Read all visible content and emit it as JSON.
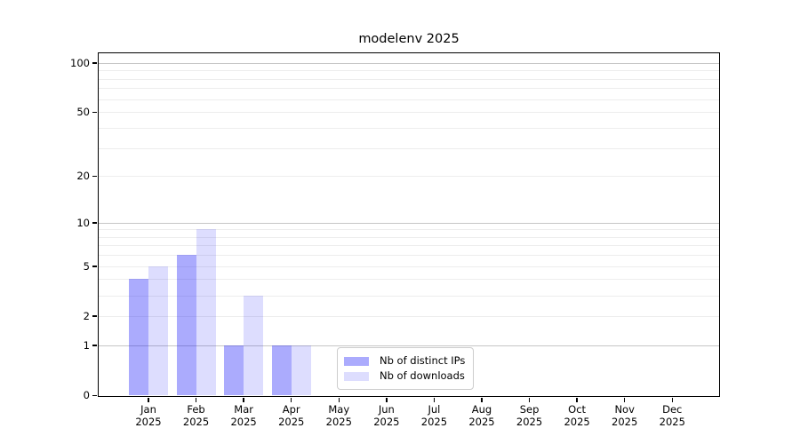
{
  "title": "modelenv 2025",
  "colors": {
    "distinct_ips_fill": "rgba(15,15,250,0.35)",
    "downloads_fill": "rgba(15,15,250,0.14)",
    "grid_major": "#c6c6c6",
    "grid_minor": "#ededed",
    "axis_line": "#000000",
    "legend_border": "#cccccc"
  },
  "legend": {
    "items": [
      {
        "label": "Nb of distinct IPs",
        "color_key": "distinct_ips_fill"
      },
      {
        "label": "Nb of downloads",
        "color_key": "downloads_fill"
      }
    ]
  },
  "chart_data": {
    "type": "bar",
    "title": "modelenv 2025",
    "categories": [
      "Jan 2025",
      "Feb 2025",
      "Mar 2025",
      "Apr 2025",
      "May 2025",
      "Jun 2025",
      "Jul 2025",
      "Aug 2025",
      "Sep 2025",
      "Oct 2025",
      "Nov 2025",
      "Dec 2025"
    ],
    "x_tick_line1": [
      "Jan",
      "Feb",
      "Mar",
      "Apr",
      "May",
      "Jun",
      "Jul",
      "Aug",
      "Sep",
      "Oct",
      "Nov",
      "Dec"
    ],
    "x_tick_line2": "2025",
    "series": [
      {
        "name": "Nb of distinct IPs",
        "values": [
          4,
          6,
          1,
          1,
          0,
          0,
          0,
          0,
          0,
          0,
          0,
          0
        ]
      },
      {
        "name": "Nb of downloads",
        "values": [
          5,
          9,
          3,
          1,
          0,
          0,
          0,
          0,
          0,
          0,
          0,
          0
        ]
      }
    ],
    "xlabel": "",
    "ylabel": "",
    "y_scale": "log1p",
    "ylim": [
      0,
      113
    ],
    "y_major_ticks": [
      0,
      1,
      2,
      5,
      10,
      20,
      50,
      100
    ],
    "y_major_gridlines": [
      1,
      10,
      100
    ],
    "y_minor_gridlines": [
      2,
      3,
      4,
      5,
      6,
      7,
      8,
      9,
      20,
      30,
      40,
      50,
      60,
      70,
      80,
      90
    ],
    "grid": true,
    "legend_position": "inside-bottom-center"
  }
}
